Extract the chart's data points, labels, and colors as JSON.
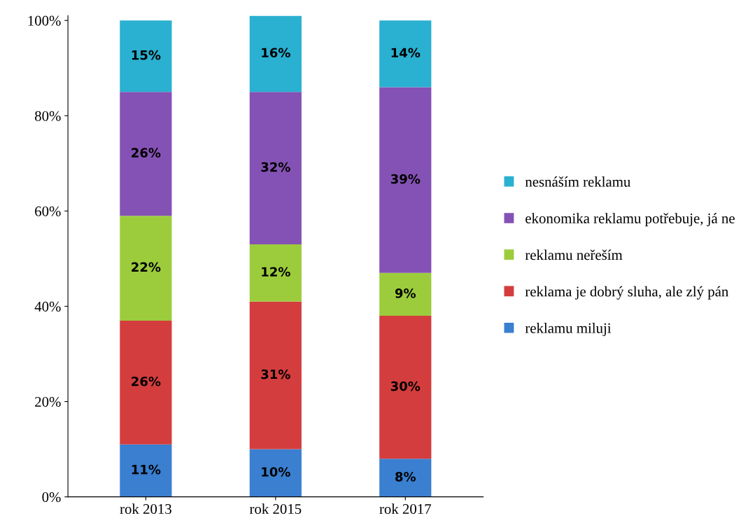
{
  "chart_data": {
    "type": "bar",
    "stacked": true,
    "categories": [
      "rok 2013",
      "rok 2015",
      "rok 2017"
    ],
    "series": [
      {
        "name": "reklamu miluji",
        "color": "#3a7fd0",
        "values": [
          11,
          10,
          8
        ],
        "value_labels": [
          "11%",
          "10%",
          "8%"
        ]
      },
      {
        "name": "reklama je dobrý sluha, ale zlý pán",
        "color": "#d43d3d",
        "values": [
          26,
          31,
          30
        ],
        "value_labels": [
          "26%",
          "31%",
          "30%"
        ]
      },
      {
        "name": "reklamu neřeším",
        "color": "#9ccc3c",
        "values": [
          22,
          12,
          9
        ],
        "value_labels": [
          "22%",
          "12%",
          "9%"
        ]
      },
      {
        "name": "ekonomika reklamu potřebuje, já ne",
        "color": "#8452b4",
        "values": [
          26,
          32,
          39
        ],
        "value_labels": [
          "26%",
          "32%",
          "39%"
        ]
      },
      {
        "name": "nesnáším reklamu",
        "color": "#2ab0d0",
        "values": [
          15,
          16,
          14
        ],
        "value_labels": [
          "15%",
          "16%",
          "14%"
        ]
      }
    ],
    "ylim": [
      0,
      101
    ],
    "yticks": [
      {
        "value": 0,
        "label": "0%"
      },
      {
        "value": 20,
        "label": "20%"
      },
      {
        "value": 40,
        "label": "40%"
      },
      {
        "value": 60,
        "label": "60%"
      },
      {
        "value": 80,
        "label": "80%"
      },
      {
        "value": 100,
        "label": "100%"
      }
    ],
    "grid": false,
    "legend": "right"
  }
}
